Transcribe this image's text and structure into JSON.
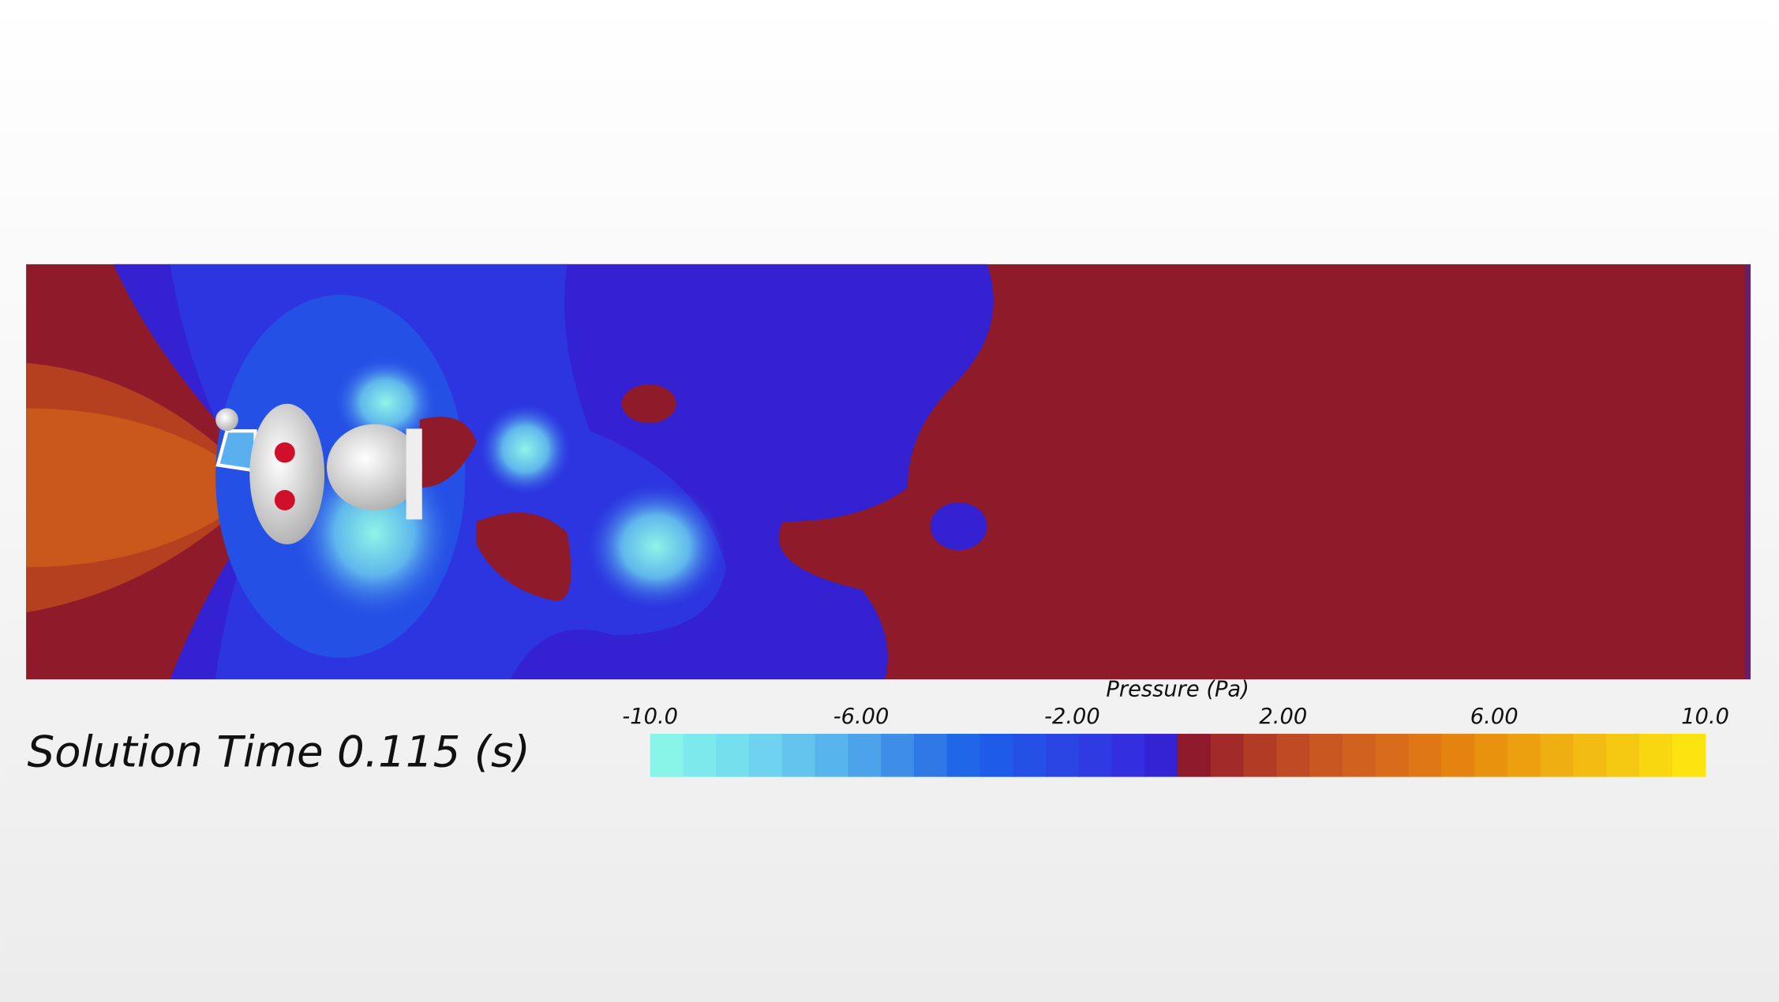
{
  "solution_time": "Solution Time 0.115 (s)",
  "colorbar": {
    "title": "Pressure (Pa)",
    "range": [
      -10,
      10
    ],
    "ticks": [
      {
        "value": -10,
        "label": "-10.0"
      },
      {
        "value": -6,
        "label": "-6.00"
      },
      {
        "value": -2,
        "label": "-2.00"
      },
      {
        "value": 2,
        "label": "2.00"
      },
      {
        "value": 6,
        "label": "6.00"
      },
      {
        "value": 10,
        "label": "10.0"
      }
    ],
    "colors": [
      "#88f5e8",
      "#7de9ec",
      "#76dfee",
      "#6fd2ee",
      "#64c4ee",
      "#58b4ec",
      "#4ca3ea",
      "#3e8ee8",
      "#2f78e6",
      "#1f66e8",
      "#1d5be8",
      "#2550e6",
      "#2b45e4",
      "#303ae2",
      "#332fe0",
      "#3423d2",
      "#8e1a2b",
      "#a22a28",
      "#b23b26",
      "#bf4a24",
      "#c85722",
      "#d0611f",
      "#d96c1b",
      "#e07716",
      "#e58310",
      "#e9920d",
      "#eca010",
      "#efae12",
      "#f2bc13",
      "#f5c912",
      "#f8d710",
      "#fde310"
    ]
  }
}
